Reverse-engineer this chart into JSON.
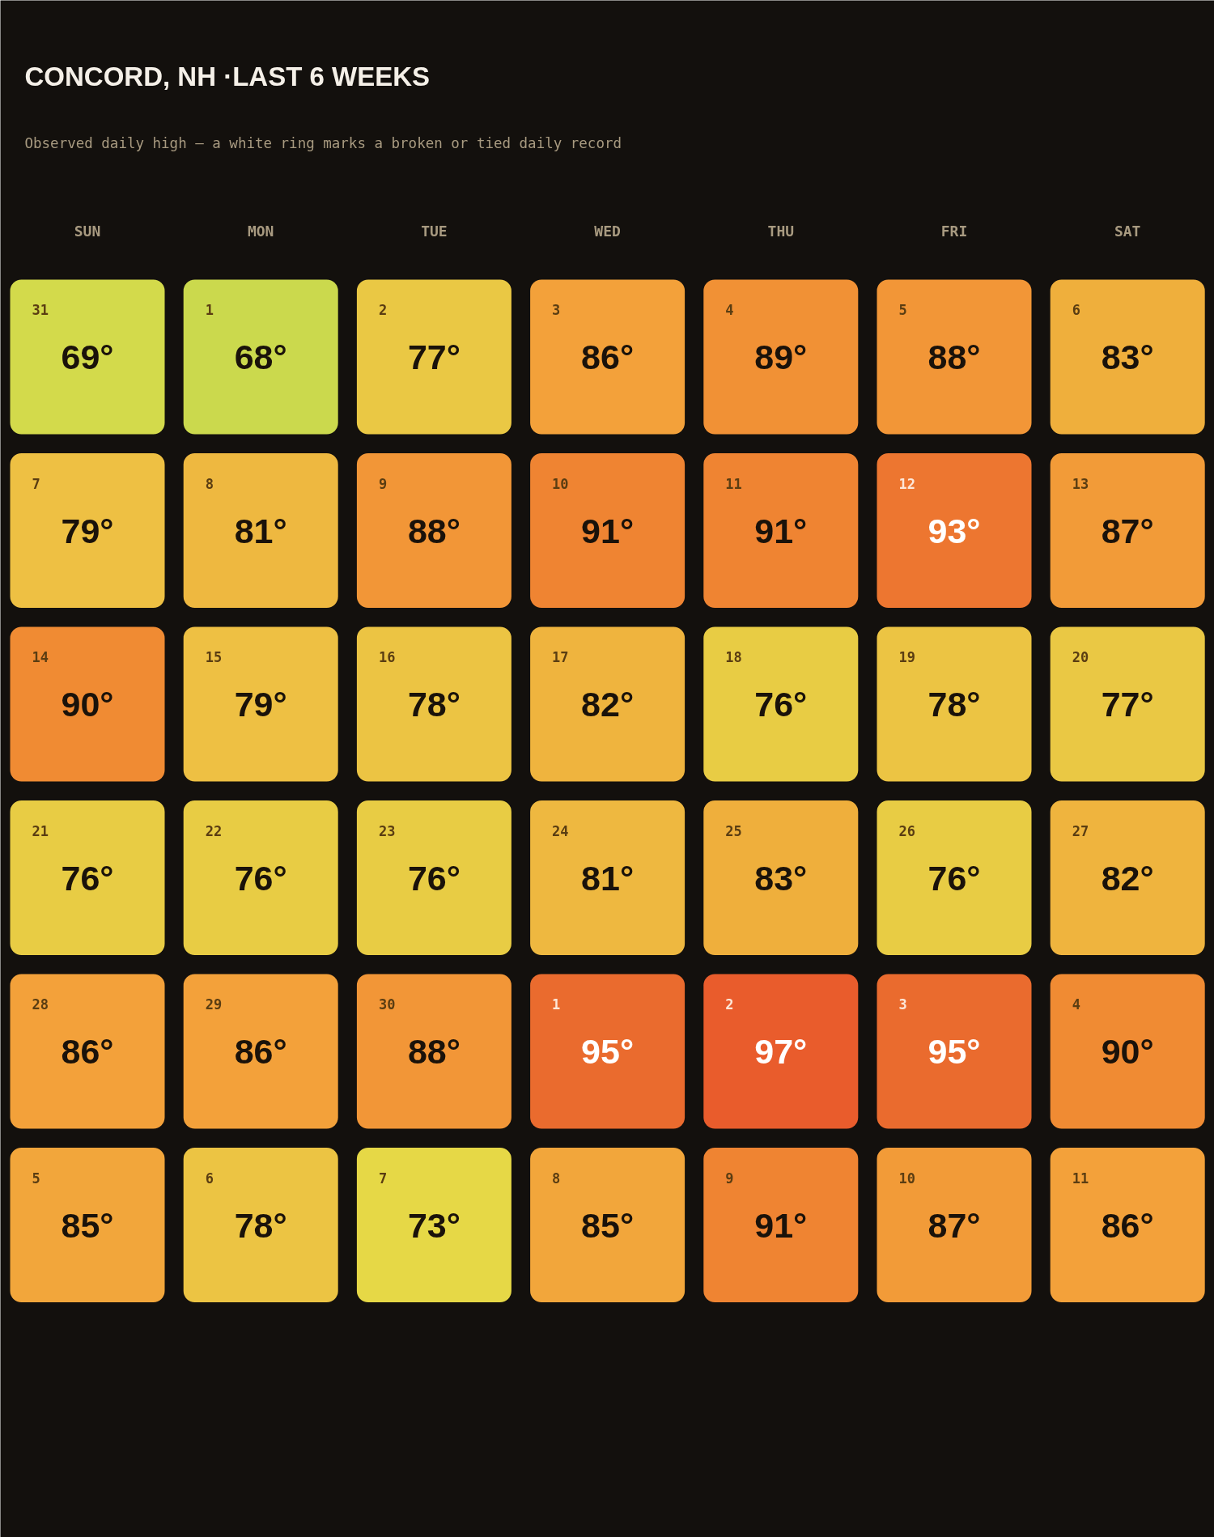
{
  "chart_data": {
    "type": "heatmap",
    "title": "CONCORD, NH ·LAST 6 WEEKS",
    "subtitle": "Observed daily high — a white ring marks a broken or tied daily record",
    "categories": [
      "SUN",
      "MON",
      "TUE",
      "WED",
      "THU",
      "FRI",
      "SAT"
    ],
    "y_categories": [
      null,
      null,
      null,
      null,
      null,
      null
    ],
    "cells": [
      [
        69,
        68,
        77,
        86,
        89,
        88,
        83
      ],
      [
        79,
        81,
        88,
        91,
        91,
        93,
        87
      ],
      [
        90,
        79,
        78,
        82,
        76,
        78,
        77
      ],
      [
        76,
        76,
        76,
        81,
        83,
        76,
        82
      ],
      [
        86,
        86,
        88,
        95,
        97,
        95,
        90
      ],
      [
        85,
        78,
        73,
        85,
        91,
        87,
        86
      ]
    ],
    "cell_labels": [
      [
        "69°",
        "68°",
        "77°",
        "86°",
        "89°",
        "88°",
        "83°"
      ],
      [
        "79°",
        "81°",
        "88°",
        "91°",
        "91°",
        "93°",
        "87°"
      ],
      [
        "90°",
        "79°",
        "78°",
        "82°",
        "76°",
        "78°",
        "77°"
      ],
      [
        "76°",
        "76°",
        "76°",
        "81°",
        "83°",
        "76°",
        "82°"
      ],
      [
        "86°",
        "86°",
        "88°",
        "95°",
        "97°",
        "95°",
        "90°"
      ],
      [
        "85°",
        "78°",
        "73°",
        "85°",
        "91°",
        "87°",
        "86°"
      ]
    ],
    "annotations": [
      "31",
      "1",
      "2",
      "3",
      "4",
      "5",
      "6",
      "7",
      "8",
      "9",
      "10",
      "11",
      "12",
      "13",
      "14",
      "15",
      "16",
      "17",
      "18",
      "19",
      "20",
      "21",
      "22",
      "23",
      "24",
      "25",
      "26",
      "27",
      "28",
      "29",
      "30",
      "1",
      "2",
      "3",
      "4",
      "5",
      "6",
      "7",
      "8",
      "9",
      "10",
      "11"
    ]
  }
}
